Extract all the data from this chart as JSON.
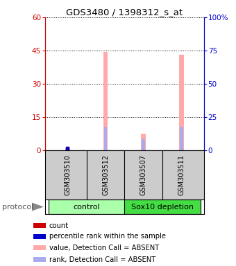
{
  "title": "GDS3480 / 1398312_s_at",
  "samples": [
    "GSM303510",
    "GSM303512",
    "GSM303507",
    "GSM303511"
  ],
  "bar_pink_values": [
    1.0,
    44.5,
    7.5,
    43.0
  ],
  "bar_blue_values": [
    1.5,
    17.5,
    8.5,
    17.5
  ],
  "dot_red_values": [
    1.0,
    0.0,
    0.0,
    0.0
  ],
  "dot_blue_values": [
    1.5,
    0.0,
    0.0,
    0.0
  ],
  "ylim_left": [
    0,
    60
  ],
  "ylim_right": [
    0,
    100
  ],
  "yticks_left": [
    0,
    15,
    30,
    45,
    60
  ],
  "yticks_right": [
    0,
    25,
    50,
    75,
    100
  ],
  "ytick_labels_left": [
    "0",
    "15",
    "30",
    "45",
    "60"
  ],
  "ytick_labels_right": [
    "0",
    "25",
    "50",
    "75",
    "100%"
  ],
  "left_axis_color": "#cc0000",
  "right_axis_color": "#0000cc",
  "bar_pink_color": "#ffaaaa",
  "bar_blue_color": "#aaaaee",
  "dot_red_color": "#cc0000",
  "dot_blue_color": "#0000cc",
  "bg_plot": "#ffffff",
  "bg_sample_labels": "#cccccc",
  "bg_group_control": "#aaffaa",
  "bg_group_sox10": "#44dd44",
  "legend_items": [
    "count",
    "percentile rank within the sample",
    "value, Detection Call = ABSENT",
    "rank, Detection Call = ABSENT"
  ],
  "legend_colors": [
    "#cc0000",
    "#0000cc",
    "#ffaaaa",
    "#aaaaee"
  ],
  "protocol_label": "protocol"
}
